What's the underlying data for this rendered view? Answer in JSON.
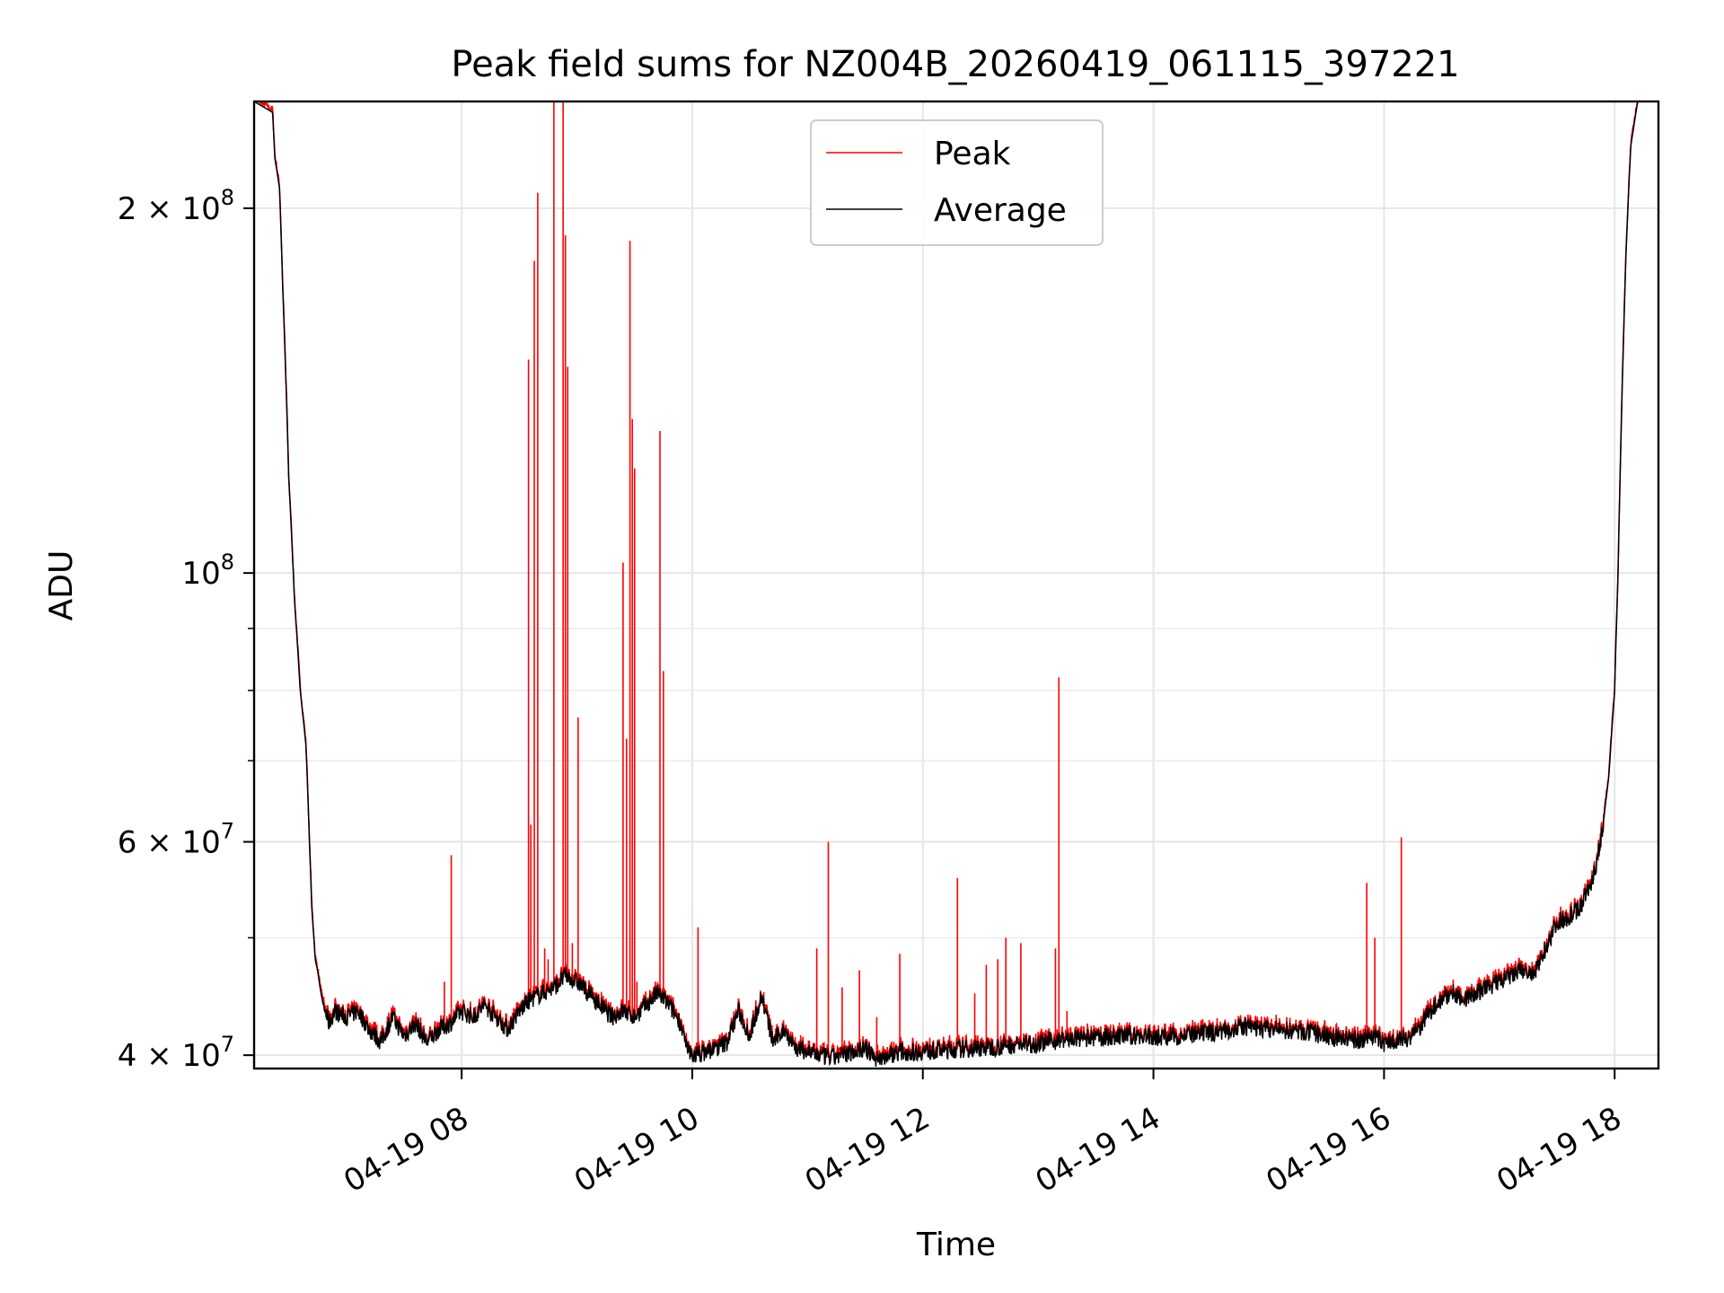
{
  "chart_data": {
    "type": "line",
    "title": "Peak field sums for NZ004B_20260419_061115_397221",
    "xlabel": "Time",
    "ylabel": "ADU",
    "yscale": "log",
    "xlim_hours": [
      6.2,
      18.38
    ],
    "ylim": [
      39000000,
      245000000
    ],
    "grid": true,
    "legend_position": "upper-center",
    "x_ticks": [
      {
        "hour": 8,
        "label": "04-19 08"
      },
      {
        "hour": 10,
        "label": "04-19 10"
      },
      {
        "hour": 12,
        "label": "04-19 12"
      },
      {
        "hour": 14,
        "label": "04-19 14"
      },
      {
        "hour": 16,
        "label": "04-19 16"
      },
      {
        "hour": 18,
        "label": "04-19 18"
      }
    ],
    "y_major_ticks": [
      {
        "value": 40000000,
        "base": "4 × 10",
        "exp": "7"
      },
      {
        "value": 60000000,
        "base": "6 × 10",
        "exp": "7"
      },
      {
        "value": 100000000,
        "base": "10",
        "exp": "8"
      },
      {
        "value": 200000000,
        "base": "2 × 10",
        "exp": "8"
      }
    ],
    "y_minor_ticks": [
      50000000,
      70000000,
      80000000,
      90000000
    ],
    "series": [
      {
        "name": "Average",
        "color": "#000000",
        "points": [
          [
            6.2,
            245000000
          ],
          [
            6.36,
            240000000
          ],
          [
            6.38,
            220000000
          ],
          [
            6.42,
            208000000
          ],
          [
            6.45,
            170000000
          ],
          [
            6.5,
            120000000
          ],
          [
            6.55,
            95000000
          ],
          [
            6.6,
            80000000
          ],
          [
            6.65,
            72000000
          ],
          [
            6.68,
            60000000
          ],
          [
            6.7,
            53000000
          ],
          [
            6.73,
            48000000
          ],
          [
            6.75,
            47000000
          ],
          [
            6.78,
            45000000
          ],
          [
            6.8,
            44000000
          ],
          [
            6.85,
            42500000
          ],
          [
            6.9,
            43500000
          ],
          [
            7.0,
            43000000
          ],
          [
            7.1,
            43500000
          ],
          [
            7.2,
            42000000
          ],
          [
            7.3,
            41000000
          ],
          [
            7.4,
            43000000
          ],
          [
            7.5,
            41500000
          ],
          [
            7.6,
            42500000
          ],
          [
            7.7,
            41000000
          ],
          [
            7.8,
            42000000
          ],
          [
            7.9,
            42500000
          ],
          [
            8.0,
            43500000
          ],
          [
            8.1,
            43000000
          ],
          [
            8.2,
            44000000
          ],
          [
            8.3,
            43000000
          ],
          [
            8.4,
            42000000
          ],
          [
            8.5,
            43500000
          ],
          [
            8.6,
            44500000
          ],
          [
            8.7,
            45000000
          ],
          [
            8.8,
            45500000
          ],
          [
            8.9,
            46500000
          ],
          [
            9.0,
            46000000
          ],
          [
            9.1,
            45000000
          ],
          [
            9.2,
            44000000
          ],
          [
            9.3,
            43000000
          ],
          [
            9.4,
            43500000
          ],
          [
            9.5,
            43000000
          ],
          [
            9.6,
            44000000
          ],
          [
            9.7,
            45000000
          ],
          [
            9.8,
            44000000
          ],
          [
            9.9,
            42500000
          ],
          [
            9.95,
            40500000
          ],
          [
            10.0,
            40000000
          ],
          [
            10.1,
            40200000
          ],
          [
            10.2,
            40500000
          ],
          [
            10.3,
            41000000
          ],
          [
            10.4,
            43500000
          ],
          [
            10.5,
            41500000
          ],
          [
            10.6,
            44800000
          ],
          [
            10.7,
            41000000
          ],
          [
            10.8,
            42000000
          ],
          [
            10.9,
            40500000
          ],
          [
            11.0,
            40300000
          ],
          [
            11.1,
            40000000
          ],
          [
            11.2,
            39800000
          ],
          [
            11.3,
            40000000
          ],
          [
            11.4,
            40300000
          ],
          [
            11.5,
            40500000
          ],
          [
            11.6,
            39700000
          ],
          [
            11.7,
            40000000
          ],
          [
            11.8,
            40300000
          ],
          [
            11.9,
            40200000
          ],
          [
            12.0,
            40300000
          ],
          [
            12.2,
            40400000
          ],
          [
            12.4,
            40500000
          ],
          [
            12.6,
            40600000
          ],
          [
            12.8,
            40800000
          ],
          [
            13.0,
            40900000
          ],
          [
            13.2,
            41200000
          ],
          [
            13.4,
            41300000
          ],
          [
            13.6,
            41400000
          ],
          [
            13.8,
            41500000
          ],
          [
            14.0,
            41400000
          ],
          [
            14.2,
            41500000
          ],
          [
            14.4,
            41600000
          ],
          [
            14.6,
            41900000
          ],
          [
            14.8,
            42200000
          ],
          [
            15.0,
            42000000
          ],
          [
            15.2,
            41900000
          ],
          [
            15.4,
            41700000
          ],
          [
            15.6,
            41300000
          ],
          [
            15.8,
            41200000
          ],
          [
            15.9,
            41600000
          ],
          [
            16.0,
            40900000
          ],
          [
            16.1,
            41200000
          ],
          [
            16.2,
            41300000
          ],
          [
            16.3,
            42000000
          ],
          [
            16.4,
            43500000
          ],
          [
            16.5,
            44500000
          ],
          [
            16.6,
            45000000
          ],
          [
            16.7,
            44500000
          ],
          [
            16.8,
            45000000
          ],
          [
            16.9,
            45500000
          ],
          [
            17.0,
            46000000
          ],
          [
            17.1,
            46500000
          ],
          [
            17.2,
            47000000
          ],
          [
            17.3,
            46500000
          ],
          [
            17.4,
            49000000
          ],
          [
            17.5,
            51500000
          ],
          [
            17.6,
            52000000
          ],
          [
            17.7,
            53000000
          ],
          [
            17.8,
            55500000
          ],
          [
            17.85,
            58000000
          ],
          [
            17.9,
            62000000
          ],
          [
            17.95,
            68000000
          ],
          [
            18.0,
            80000000
          ],
          [
            18.03,
            100000000
          ],
          [
            18.06,
            135000000
          ],
          [
            18.1,
            185000000
          ],
          [
            18.14,
            225000000
          ],
          [
            18.2,
            245000000
          ],
          [
            18.38,
            245000000
          ]
        ]
      },
      {
        "name": "Peak",
        "color": "#ff0000",
        "spikes": [
          [
            7.85,
            46000000
          ],
          [
            7.91,
            58500000
          ],
          [
            8.58,
            150000000
          ],
          [
            8.6,
            62000000
          ],
          [
            8.63,
            181000000
          ],
          [
            8.66,
            206000000
          ],
          [
            8.72,
            49000000
          ],
          [
            8.75,
            48000000
          ],
          [
            8.8,
            245000000
          ],
          [
            8.88,
            245000000
          ],
          [
            8.9,
            190000000
          ],
          [
            8.92,
            148000000
          ],
          [
            8.96,
            49500000
          ],
          [
            9.01,
            76000000
          ],
          [
            9.4,
            102000000
          ],
          [
            9.43,
            73000000
          ],
          [
            9.46,
            188000000
          ],
          [
            9.48,
            134000000
          ],
          [
            9.5,
            122000000
          ],
          [
            9.52,
            46000000
          ],
          [
            9.72,
            131000000
          ],
          [
            9.75,
            83000000
          ],
          [
            10.05,
            51000000
          ],
          [
            11.08,
            49000000
          ],
          [
            11.18,
            60000000
          ],
          [
            11.3,
            45500000
          ],
          [
            11.45,
            47000000
          ],
          [
            11.6,
            43000000
          ],
          [
            11.8,
            48500000
          ],
          [
            12.3,
            56000000
          ],
          [
            12.45,
            45000000
          ],
          [
            12.55,
            47500000
          ],
          [
            12.65,
            48000000
          ],
          [
            12.72,
            50000000
          ],
          [
            12.85,
            49500000
          ],
          [
            13.15,
            49000000
          ],
          [
            13.18,
            82000000
          ],
          [
            13.25,
            43500000
          ],
          [
            14.9,
            42800000
          ],
          [
            15.85,
            55500000
          ],
          [
            15.92,
            50000000
          ],
          [
            16.15,
            60500000
          ]
        ]
      }
    ]
  }
}
